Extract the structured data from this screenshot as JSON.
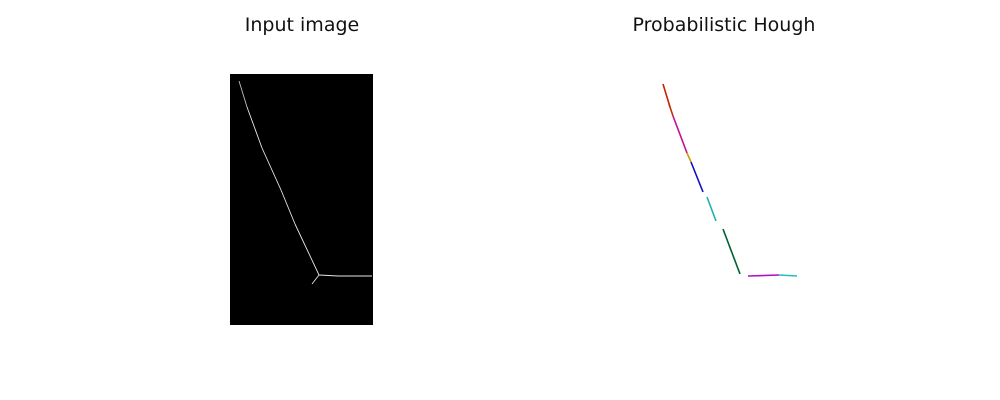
{
  "titles": {
    "left": "Input image",
    "right": "Probabilistic Hough"
  },
  "chart_data": [
    {
      "type": "image",
      "title": "Input image",
      "background": "#000000",
      "stroke": "#ffffff",
      "edge_segments": [
        [
          [
            239,
            81
          ],
          [
            247,
            107
          ]
        ],
        [
          [
            247,
            107
          ],
          [
            262,
            148
          ]
        ],
        [
          [
            262,
            148
          ],
          [
            281,
            190
          ]
        ],
        [
          [
            281,
            190
          ],
          [
            295,
            224
          ]
        ],
        [
          [
            295,
            224
          ],
          [
            303,
            241
          ]
        ],
        [
          [
            303,
            241
          ],
          [
            319,
            275
          ]
        ],
        [
          [
            319,
            275
          ],
          [
            338,
            276
          ]
        ],
        [
          [
            338,
            276
          ],
          [
            372,
            276
          ]
        ],
        [
          [
            319,
            275
          ],
          [
            312,
            284
          ]
        ]
      ]
    },
    {
      "type": "line",
      "title": "Probabilistic Hough",
      "segments": [
        {
          "p": [
            [
              663,
              84
            ],
            [
              670,
              107
            ]
          ],
          "color": "#cc2200"
        },
        {
          "p": [
            [
              669,
              104
            ],
            [
              673,
              116
            ]
          ],
          "color": "#bb3300"
        },
        {
          "p": [
            [
              673,
              116
            ],
            [
              687,
              153
            ]
          ],
          "color": "#c0109a"
        },
        {
          "p": [
            [
              687,
              153
            ],
            [
              691,
              162
            ]
          ],
          "color": "#c8a000"
        },
        {
          "p": [
            [
              691,
              162
            ],
            [
              703,
              192
            ]
          ],
          "color": "#1010c0"
        },
        {
          "p": [
            [
              707,
              197
            ],
            [
              716,
              221
            ]
          ],
          "color": "#20b0b0"
        },
        {
          "p": [
            [
              723,
              229
            ],
            [
              740,
              274
            ]
          ],
          "color": "#006030"
        },
        {
          "p": [
            [
              748,
              276
            ],
            [
              779,
              275
            ]
          ],
          "color": "#b010c8"
        },
        {
          "p": [
            [
              779,
              275
            ],
            [
              797,
              276
            ]
          ],
          "color": "#20c0c0"
        }
      ]
    }
  ]
}
